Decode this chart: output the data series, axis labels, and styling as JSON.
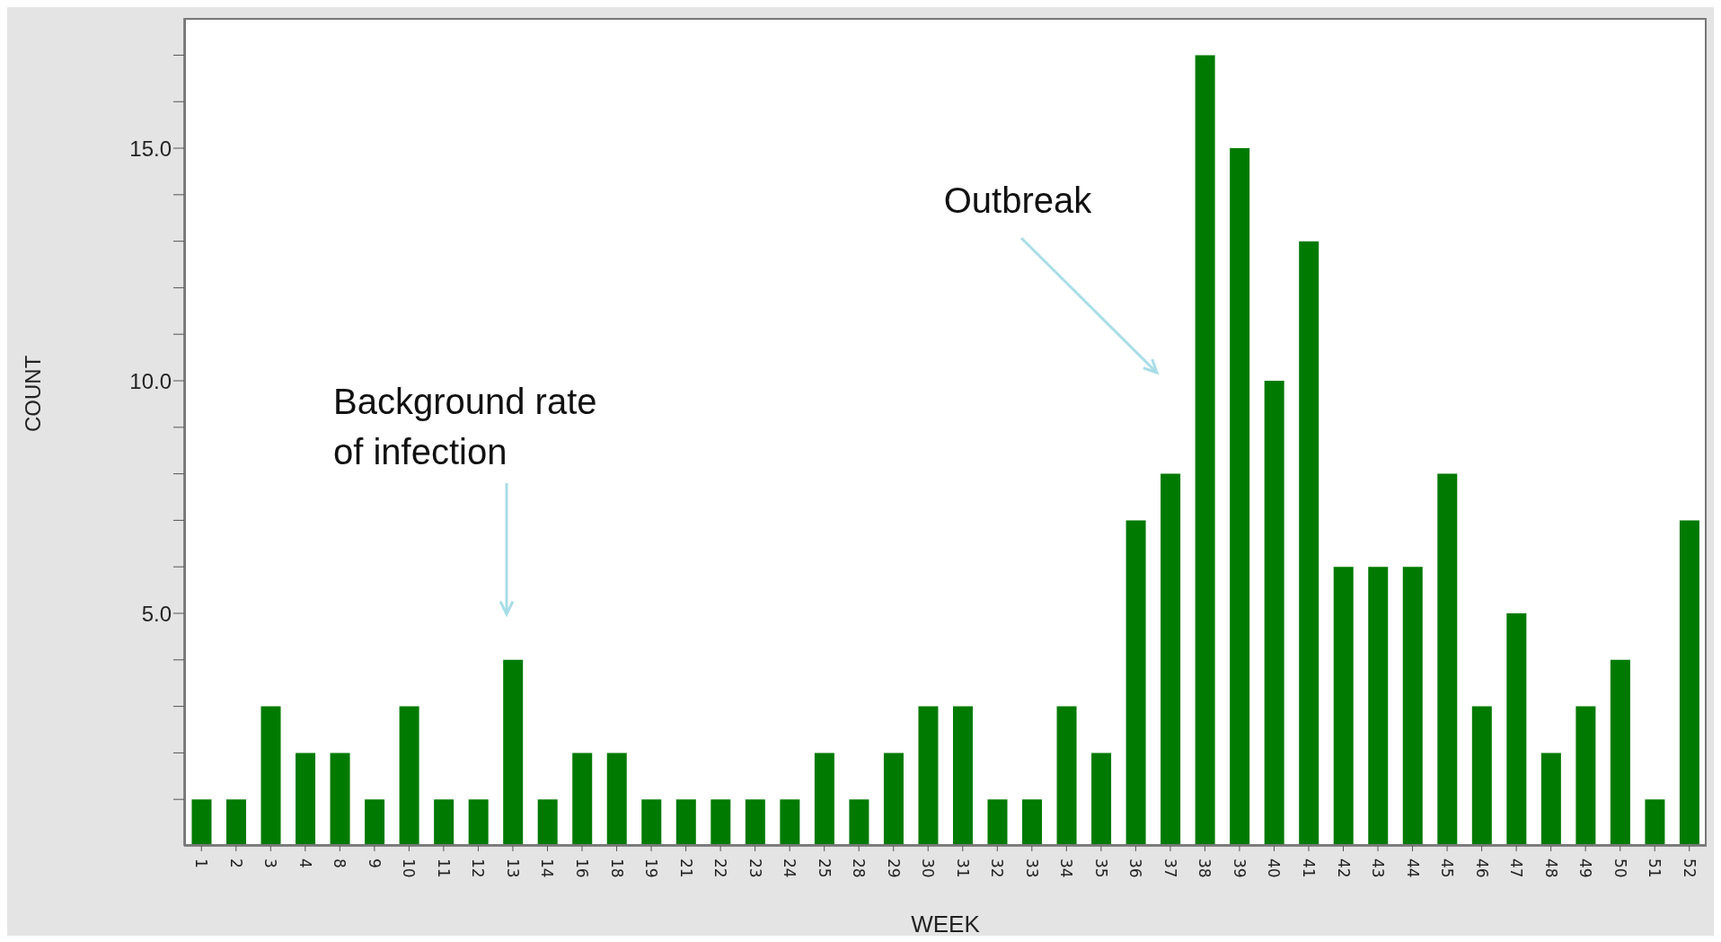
{
  "chart_data": {
    "type": "bar",
    "xlabel": "WEEK",
    "ylabel": "COUNT",
    "categories": [
      "1",
      "2",
      "3",
      "4",
      "8",
      "9",
      "10",
      "11",
      "12",
      "13",
      "14",
      "16",
      "18",
      "19",
      "21",
      "22",
      "23",
      "24",
      "25",
      "28",
      "29",
      "30",
      "31",
      "32",
      "33",
      "34",
      "35",
      "36",
      "37",
      "38",
      "39",
      "40",
      "41",
      "42",
      "43",
      "44",
      "45",
      "46",
      "47",
      "48",
      "49",
      "50",
      "51",
      "52"
    ],
    "values": [
      1,
      1,
      3,
      2,
      2,
      1,
      3,
      1,
      1,
      4,
      1,
      2,
      2,
      1,
      1,
      1,
      1,
      1,
      2,
      1,
      2,
      3,
      3,
      1,
      1,
      3,
      2,
      7,
      8,
      17,
      15,
      10,
      13,
      6,
      6,
      6,
      8,
      3,
      5,
      2,
      3,
      4,
      1,
      7
    ],
    "color": "#007a00",
    "ylim": [
      0,
      17.8
    ],
    "yticks": [
      {
        "value": 1,
        "label": null
      },
      {
        "value": 2,
        "label": null
      },
      {
        "value": 3,
        "label": null
      },
      {
        "value": 4,
        "label": null
      },
      {
        "value": 5,
        "label": "5.0"
      },
      {
        "value": 6,
        "label": null
      },
      {
        "value": 7,
        "label": null
      },
      {
        "value": 8,
        "label": null
      },
      {
        "value": 9,
        "label": null
      },
      {
        "value": 10,
        "label": "10.0"
      },
      {
        "value": 11,
        "label": null
      },
      {
        "value": 12,
        "label": null
      },
      {
        "value": 13,
        "label": null
      },
      {
        "value": 14,
        "label": null
      },
      {
        "value": 15,
        "label": "15.0"
      },
      {
        "value": 16,
        "label": null
      },
      {
        "value": 17,
        "label": null
      }
    ],
    "grid": false,
    "legend": false,
    "annotations": [
      "Background rate of infection",
      "Outbreak"
    ]
  }
}
